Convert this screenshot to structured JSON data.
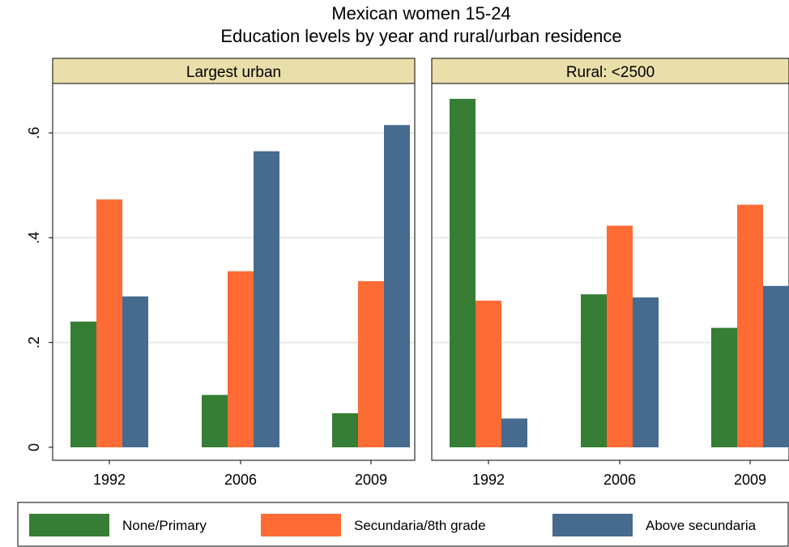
{
  "chart_data": {
    "type": "bar",
    "title": "Mexican women 15-24",
    "subtitle": "Education levels by year and rural/urban residence",
    "categories": [
      "1992",
      "2006",
      "2009"
    ],
    "ylim": [
      0,
      0.7
    ],
    "yticks": [
      0,
      0.2,
      0.4,
      0.6
    ],
    "ytick_labels": [
      "0",
      ".2",
      ".4",
      ".6"
    ],
    "grid": true,
    "legend_position": "bottom",
    "series_colors": [
      "#367e35",
      "#fe6b35",
      "#466b8e"
    ],
    "legend": [
      "None/Primary",
      "Secundaria/8th grade",
      "Above secundaria"
    ],
    "panels": [
      {
        "label": "Largest urban",
        "series": [
          {
            "values": [
              0.24,
              0.1,
              0.065
            ]
          },
          {
            "values": [
              0.473,
              0.336,
              0.317
            ]
          },
          {
            "values": [
              0.288,
              0.565,
              0.615
            ]
          }
        ]
      },
      {
        "label": "Rural: <2500",
        "series": [
          {
            "values": [
              0.665,
              0.292,
              0.228
            ]
          },
          {
            "values": [
              0.28,
              0.423,
              0.463
            ]
          },
          {
            "values": [
              0.055,
              0.286,
              0.308
            ]
          }
        ]
      }
    ]
  }
}
